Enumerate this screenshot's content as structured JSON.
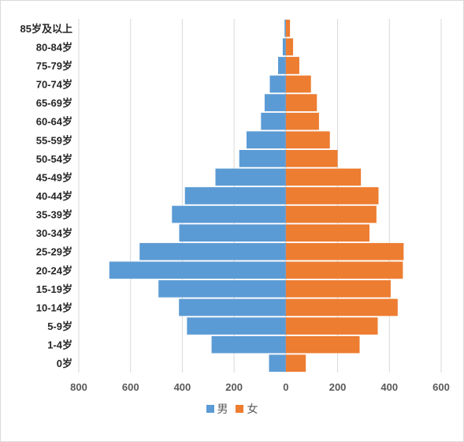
{
  "chart_data": {
    "type": "bar",
    "orientation": "horizontal",
    "categories": [
      "0岁",
      "1-4岁",
      "5-9岁",
      "10-14岁",
      "15-19岁",
      "20-24岁",
      "25-29岁",
      "30-34岁",
      "35-39岁",
      "40-44岁",
      "45-49岁",
      "50-54岁",
      "55-59岁",
      "60-64岁",
      "65-69岁",
      "70-74岁",
      "75-79岁",
      "80-84岁",
      "85岁及以上"
    ],
    "series": [
      {
        "name": "男",
        "color": "#5b9bd5",
        "values": [
          -65,
          -287,
          -382,
          -413,
          -492,
          -682,
          -565,
          -412,
          -440,
          -390,
          -272,
          -180,
          -152,
          -96,
          -82,
          -62,
          -30,
          -12,
          -5
        ]
      },
      {
        "name": "女",
        "color": "#ed7d31",
        "values": [
          77,
          285,
          355,
          432,
          405,
          452,
          455,
          323,
          350,
          358,
          290,
          200,
          170,
          128,
          120,
          97,
          52,
          28,
          16
        ]
      }
    ],
    "xticks": [
      "800",
      "600",
      "400",
      "200",
      "0",
      "200",
      "400",
      "600"
    ],
    "xlim": [
      -800,
      600
    ],
    "grid": true,
    "legend_position": "bottom"
  }
}
